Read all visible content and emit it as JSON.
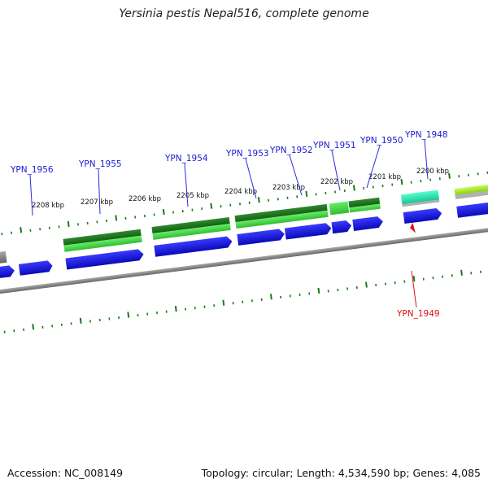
{
  "title": "Yersinia pestis Nepal516, complete genome",
  "accession": "Accession: NC_008149",
  "summary": "Topology: circular; Length: 4,534,590 bp; Genes: 4,085",
  "colors": {
    "forward_cds": "#1a1ae6",
    "orf_dark_green": "#1f7a1f",
    "orf_light_green": "#55dd55",
    "orf_cyan": "#33e8b8",
    "orf_yellow_green": "#aaee33",
    "backbone": "#888888",
    "kbp_tick": "#1a7a1a",
    "label_blue": "#1a1ad0",
    "label_red": "#e01010"
  },
  "kbp_labels": [
    "2208 kbp",
    "2207 kbp",
    "2206 kbp",
    "2205 kbp",
    "2204 kbp",
    "2203 kbp",
    "2202 kbp",
    "2201 kbp",
    "2200 kbp"
  ],
  "gene_labels": [
    "YPN_1956",
    "YPN_1955",
    "YPN_1954",
    "YPN_1953",
    "YPN_1952",
    "YPN_1951",
    "YPN_1950",
    "YPN_1948"
  ],
  "reverse_gene_label": "YPN_1949"
}
